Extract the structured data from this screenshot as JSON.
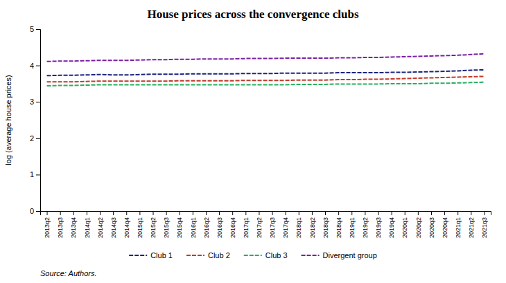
{
  "chart_data": {
    "type": "line",
    "title": "House prices across the convergence clubs",
    "y_label": "log (average house prices)",
    "source": "Source: Authors.",
    "categories": [
      "2013q2",
      "2013q3",
      "2013q4",
      "2014q1",
      "2014q2",
      "2014q3",
      "2014q4",
      "2015q1",
      "2015q2",
      "2015q3",
      "2015q4",
      "2016q1",
      "2016q2",
      "2016q3",
      "2016q4",
      "2017q1",
      "2017q2",
      "2017q3",
      "2017q4",
      "2018q1",
      "2018q2",
      "2018q3",
      "2018q4",
      "2019q1",
      "2019q2",
      "2019q3",
      "2019q4",
      "2020q1",
      "2020q2",
      "2020q3",
      "2020q4",
      "2021q1",
      "2021q2",
      "2021q3"
    ],
    "series": [
      {
        "name": "Club 1",
        "color": "#1a237e",
        "line_style": "dashed",
        "values": [
          3.72,
          3.73,
          3.73,
          3.74,
          3.75,
          3.74,
          3.74,
          3.75,
          3.76,
          3.76,
          3.76,
          3.77,
          3.77,
          3.77,
          3.77,
          3.78,
          3.78,
          3.78,
          3.79,
          3.79,
          3.79,
          3.79,
          3.8,
          3.8,
          3.8,
          3.8,
          3.81,
          3.81,
          3.82,
          3.83,
          3.84,
          3.85,
          3.87,
          3.88
        ]
      },
      {
        "name": "Club 2",
        "color": "#c0392b",
        "line_style": "dashed",
        "values": [
          3.55,
          3.55,
          3.55,
          3.56,
          3.57,
          3.57,
          3.57,
          3.57,
          3.57,
          3.57,
          3.58,
          3.58,
          3.58,
          3.58,
          3.58,
          3.59,
          3.59,
          3.59,
          3.59,
          3.6,
          3.6,
          3.6,
          3.61,
          3.61,
          3.62,
          3.62,
          3.63,
          3.64,
          3.65,
          3.66,
          3.67,
          3.68,
          3.69,
          3.7
        ]
      },
      {
        "name": "Club 3",
        "color": "#27ae60",
        "line_style": "dashed",
        "values": [
          3.44,
          3.45,
          3.45,
          3.46,
          3.47,
          3.47,
          3.47,
          3.47,
          3.47,
          3.47,
          3.47,
          3.47,
          3.47,
          3.47,
          3.47,
          3.47,
          3.47,
          3.47,
          3.47,
          3.48,
          3.48,
          3.48,
          3.49,
          3.49,
          3.49,
          3.49,
          3.5,
          3.5,
          3.5,
          3.51,
          3.51,
          3.52,
          3.53,
          3.54
        ]
      },
      {
        "name": "Divergent group",
        "color": "#7b1fa2",
        "line_style": "dashed",
        "values": [
          4.11,
          4.12,
          4.12,
          4.13,
          4.14,
          4.14,
          4.14,
          4.15,
          4.16,
          4.16,
          4.17,
          4.17,
          4.18,
          4.18,
          4.18,
          4.19,
          4.19,
          4.19,
          4.2,
          4.2,
          4.2,
          4.2,
          4.21,
          4.21,
          4.22,
          4.22,
          4.23,
          4.24,
          4.25,
          4.26,
          4.27,
          4.28,
          4.3,
          4.32
        ]
      }
    ],
    "ylim": [
      0,
      5
    ],
    "yticks": [
      0,
      1,
      2,
      3,
      4,
      5
    ],
    "grid": false,
    "legend": "bottom"
  }
}
